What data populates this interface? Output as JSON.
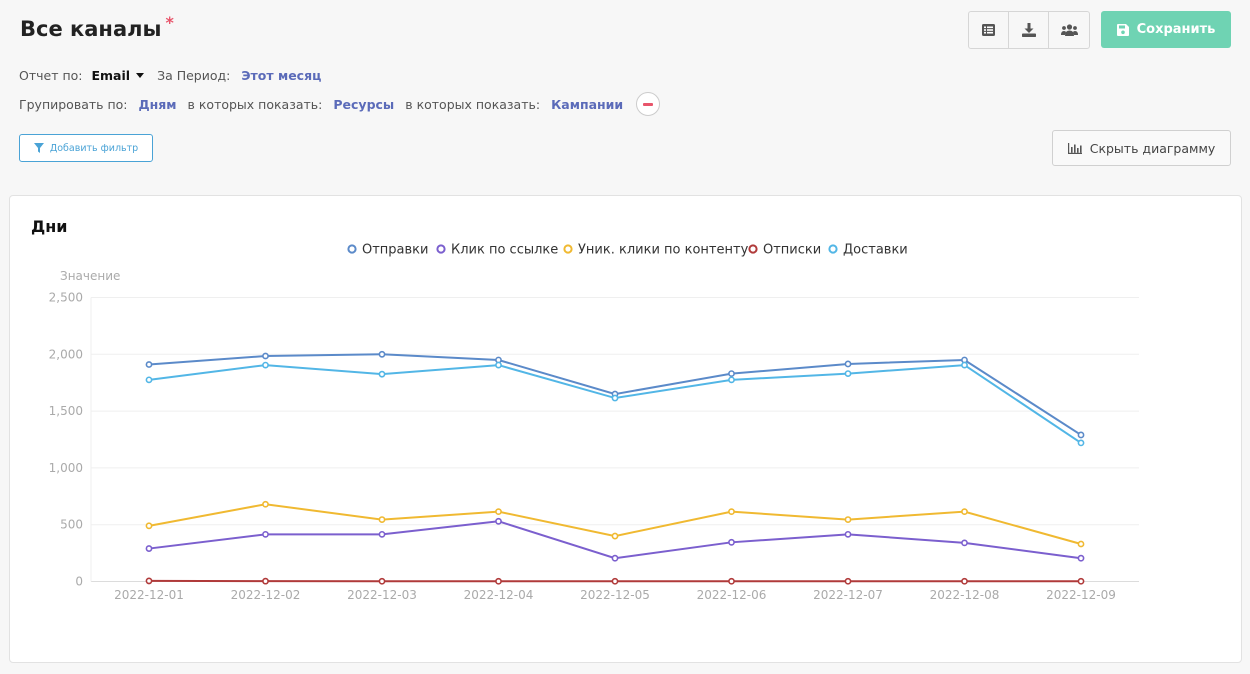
{
  "header": {
    "title": "Все каналы",
    "required_mark": "*",
    "save_label": "Сохранить",
    "icons": [
      "list-icon",
      "download-icon",
      "users-icon",
      "save-icon"
    ]
  },
  "report": {
    "by_label": "Отчет по:",
    "by_value": "Email",
    "period_label": "За Период:",
    "period_value": "Этот месяц"
  },
  "grouping": {
    "group_label": "Групировать по:",
    "group_value": "Дням",
    "show1_label": "в которых показать:",
    "show1_value": "Ресурсы",
    "show2_label": "в которых показать:",
    "show2_value": "Кампании"
  },
  "filter_label": "Добавить фильтр",
  "hide_chart_label": "Скрыть диаграмму",
  "colors": {
    "accent": "#6fd3b3",
    "link": "#5b6bb9",
    "filter": "#4aa3d6",
    "remove": "#e8556b"
  },
  "chart_data": {
    "type": "line",
    "title": "Дни",
    "ylabel": "Значение",
    "xlabel": "",
    "x": [
      "2022-12-01",
      "2022-12-02",
      "2022-12-03",
      "2022-12-04",
      "2022-12-05",
      "2022-12-06",
      "2022-12-07",
      "2022-12-08",
      "2022-12-09"
    ],
    "ylim": [
      0,
      2500
    ],
    "yticks": [
      0,
      500,
      1000,
      1500,
      2000,
      2500
    ],
    "ytick_labels": [
      "0",
      "500",
      "1,000",
      "1,500",
      "2,000",
      "2,500"
    ],
    "legend_position": "top-center",
    "grid": true,
    "series": [
      {
        "name": "Отправки",
        "color": "#5b8ac9",
        "values": [
          1910,
          1985,
          2000,
          1950,
          1650,
          1830,
          1915,
          1950,
          1290
        ]
      },
      {
        "name": "Клик по ссылке",
        "color": "#7b5fce",
        "values": [
          290,
          415,
          415,
          530,
          205,
          345,
          415,
          340,
          205
        ]
      },
      {
        "name": "Уник. клики по контенту",
        "color": "#f0b931",
        "values": [
          490,
          680,
          545,
          615,
          400,
          615,
          545,
          615,
          330
        ]
      },
      {
        "name": "Отписки",
        "color": "#b03a3a",
        "values": [
          5,
          3,
          2,
          2,
          2,
          2,
          2,
          2,
          2
        ]
      },
      {
        "name": "Доставки",
        "color": "#52b6e6",
        "values": [
          1775,
          1905,
          1825,
          1905,
          1615,
          1775,
          1830,
          1905,
          1220
        ]
      }
    ]
  }
}
